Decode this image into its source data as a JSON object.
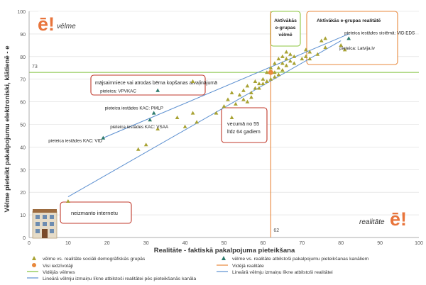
{
  "chart_data": {
    "type": "scatter",
    "xlabel": "Realitāte - faktiskā pakalpojuma pieteikšana",
    "ylabel": "Vēlme pieteikt pakalpojumu elektroniski, klātienē - e",
    "xlim": [
      0,
      100
    ],
    "ylim": [
      0,
      100
    ],
    "xticks": [
      0,
      10,
      20,
      30,
      40,
      50,
      60,
      70,
      80,
      90,
      100
    ],
    "yticks": [
      0,
      10,
      20,
      30,
      40,
      50,
      60,
      70,
      80,
      90,
      100
    ],
    "grid": "horizontal",
    "corner_labels": {
      "top_left": "vēlme",
      "bottom_right": "realitāte"
    },
    "logo_text": "ē!",
    "avg_wish": {
      "value": 73,
      "label": "73",
      "color": "#7fc03a"
    },
    "avg_reality": {
      "value": 62,
      "label": "62",
      "color": "#e8883c"
    },
    "series": [
      {
        "name": "vēlme vs. realitāte sociāli demogrāfiskās grupās",
        "color": "#a8a232",
        "points": [
          [
            10,
            16
          ],
          [
            28,
            39
          ],
          [
            30,
            41
          ],
          [
            33,
            48
          ],
          [
            38,
            53
          ],
          [
            40,
            49
          ],
          [
            42,
            55
          ],
          [
            43,
            51
          ],
          [
            48,
            55
          ],
          [
            50,
            58
          ],
          [
            51,
            61
          ],
          [
            52,
            53
          ],
          [
            52,
            64
          ],
          [
            53,
            59
          ],
          [
            54,
            63
          ],
          [
            55,
            61
          ],
          [
            55,
            65
          ],
          [
            56,
            60
          ],
          [
            56,
            67
          ],
          [
            57,
            62
          ],
          [
            57,
            64
          ],
          [
            58,
            66
          ],
          [
            58,
            69
          ],
          [
            59,
            68
          ],
          [
            59,
            66
          ],
          [
            60,
            68
          ],
          [
            60,
            70
          ],
          [
            61,
            69
          ],
          [
            61,
            73
          ],
          [
            62,
            70
          ],
          [
            62,
            75
          ],
          [
            63,
            71
          ],
          [
            63,
            73
          ],
          [
            63,
            77
          ],
          [
            64,
            72
          ],
          [
            64,
            75
          ],
          [
            64,
            79
          ],
          [
            65,
            74
          ],
          [
            65,
            77
          ],
          [
            65,
            80
          ],
          [
            66,
            76
          ],
          [
            66,
            79
          ],
          [
            66,
            82
          ],
          [
            67,
            78
          ],
          [
            67,
            81
          ],
          [
            68,
            77
          ],
          [
            68,
            80
          ],
          [
            70,
            79
          ],
          [
            71,
            80
          ],
          [
            71,
            83
          ],
          [
            72,
            79
          ],
          [
            72,
            82
          ],
          [
            74,
            81
          ],
          [
            75,
            87
          ],
          [
            76,
            84
          ],
          [
            76,
            88
          ],
          [
            80,
            85
          ],
          [
            81,
            83
          ],
          [
            42,
            69
          ]
        ]
      },
      {
        "name": "vēlme vs. realitāte atbilstoši pakalpojumu pieteikšanas kanāliem",
        "color": "#2b7a6c",
        "points": [
          [
            19,
            44
          ],
          [
            31,
            52
          ],
          [
            32,
            55
          ],
          [
            33,
            65
          ],
          [
            82,
            88
          ]
        ]
      },
      {
        "name": "Visi iedzīvotāji",
        "color": "#e8883c",
        "points": [
          [
            62,
            73
          ]
        ]
      }
    ],
    "reference_lines": [
      {
        "name": "Vidējās vēlmes",
        "color": "#7fc03a"
      },
      {
        "name": "Vidējā realitāte",
        "color": "#e8883c"
      }
    ],
    "trendlines": [
      {
        "name": "Lineārā vēlmju izmaiņu līkne atbilstoši realitātei pēc pieteikšanās kanāla",
        "color": "#5b8fd0",
        "from": [
          19,
          44
        ],
        "to": [
          82,
          90
        ]
      },
      {
        "name": "Lineārā vēlmju izmaiņu līkne atbilstoši realitātei",
        "color": "#5b8fd0",
        "from": [
          10,
          18
        ],
        "to": [
          80,
          87
        ]
      }
    ],
    "annotations": [
      {
        "text": "pieteica iestādes KAC: VID",
        "at": [
          19,
          44
        ]
      },
      {
        "text": "pieteica iestādes KAC: VSAA",
        "at": [
          31,
          52
        ]
      },
      {
        "text": "pieteica iestādes KAC: PMLP",
        "at": [
          32,
          55
        ]
      },
      {
        "text": "pieteica: VPVKAC",
        "at": [
          33,
          65
        ]
      },
      {
        "text": "pieteica iestādes sistēmā: VID EDS",
        "at": [
          82,
          88
        ]
      },
      {
        "text": "pieteica: Latvija.lv",
        "at": [
          82,
          85
        ]
      }
    ],
    "callouts": [
      {
        "id": "top_green",
        "lines": [
          "Aktīvākās",
          "e-grupas",
          "vēlmē"
        ],
        "border": "#8cc63f"
      },
      {
        "id": "top_orange",
        "lines": [
          "Aktīvākās e-grupas realitātē"
        ],
        "border": "#e8883c"
      },
      {
        "id": "mothers",
        "lines": [
          "mājsaimniece vai atrodas bērna kopšanas atvaļinājumā"
        ],
        "border": "#c0392b"
      },
      {
        "id": "age",
        "lines": [
          "vecumā no 55",
          "līdz 64 gadiem"
        ],
        "border": "#c0392b"
      },
      {
        "id": "nonet",
        "lines": [
          "neizmanto internetu"
        ],
        "border": "#c0392b"
      }
    ]
  }
}
